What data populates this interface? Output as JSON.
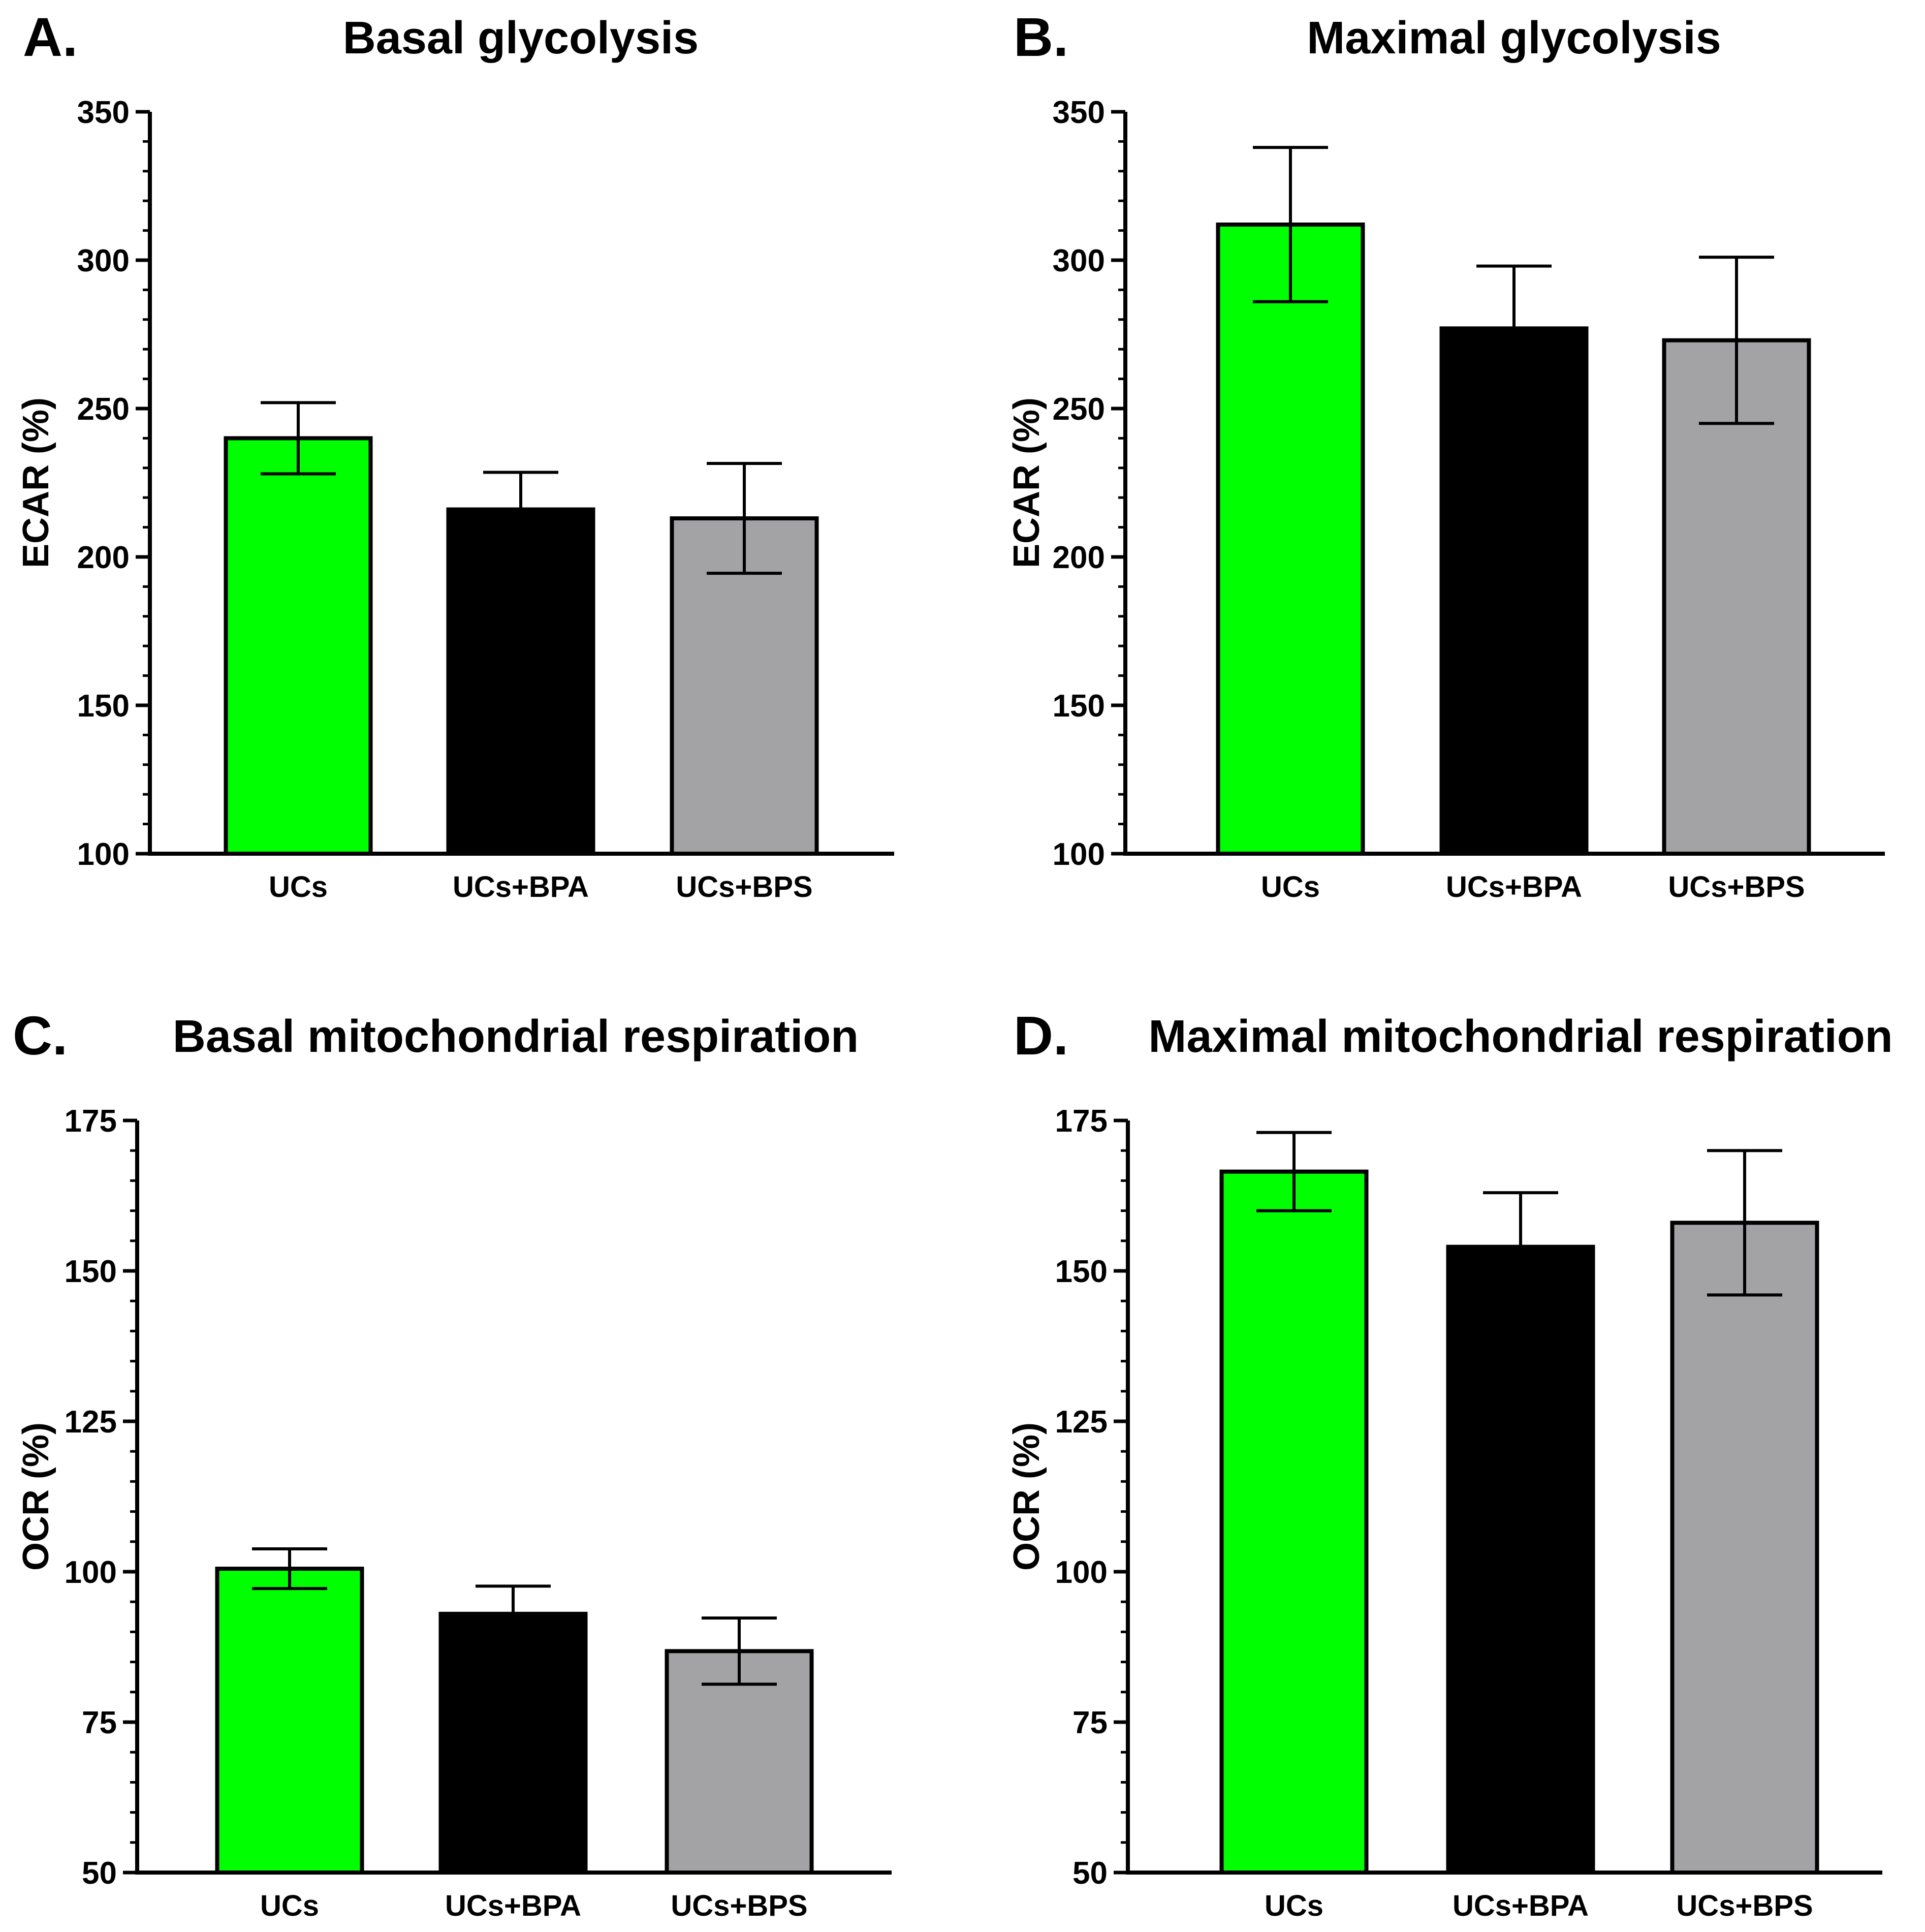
{
  "colors": {
    "green": "#00ff00",
    "black": "#000000",
    "gray": "#a3a3a6",
    "stroke": "#000000"
  },
  "chart_data": [
    {
      "type": "bar",
      "panel": "A.",
      "title": "Basal glycolysis",
      "ylabel": "ECAR (%)",
      "xlabel": "",
      "ylim": [
        100,
        350
      ],
      "yticks": [
        "100",
        "150",
        "200",
        "250",
        "300",
        "350"
      ],
      "categories": [
        "UCs",
        "UCs+BPA",
        "UCs+BPS"
      ],
      "values": [
        240,
        216,
        213
      ],
      "error": [
        12,
        12.5,
        18.5
      ],
      "bar_colors": [
        "#00ff00",
        "#000000",
        "#a3a3a6"
      ]
    },
    {
      "type": "bar",
      "panel": "B.",
      "title": "Maximal glycolysis",
      "ylabel": "ECAR (%)",
      "xlabel": "",
      "ylim": [
        100,
        350
      ],
      "yticks": [
        "100",
        "150",
        "200",
        "250",
        "300",
        "350"
      ],
      "categories": [
        "UCs",
        "UCs+BPA",
        "UCs+BPS"
      ],
      "values": [
        312,
        277,
        273
      ],
      "error": [
        26,
        21,
        28
      ],
      "bar_colors": [
        "#00ff00",
        "#000000",
        "#a3a3a6"
      ]
    },
    {
      "type": "bar",
      "panel": "C.",
      "title": "Basal mitochondrial respiration",
      "ylabel": "OCR (%)",
      "xlabel": "",
      "ylim": [
        50,
        175
      ],
      "yticks": [
        "50",
        "75",
        "100",
        "125",
        "150",
        "175"
      ],
      "categories": [
        "UCs",
        "UCs+BPA",
        "UCs+BPS"
      ],
      "values": [
        100.5,
        93,
        86.8
      ],
      "error": [
        3.3,
        4.6,
        5.5
      ],
      "bar_colors": [
        "#00ff00",
        "#000000",
        "#a3a3a6"
      ]
    },
    {
      "type": "bar",
      "panel": "D.",
      "title": "Maximal mitochondrial respiration",
      "ylabel": "OCR (%)",
      "xlabel": "",
      "ylim": [
        50,
        175
      ],
      "yticks": [
        "50",
        "75",
        "100",
        "125",
        "150",
        "175"
      ],
      "categories": [
        "UCs",
        "UCs+BPA",
        "UCs+BPS"
      ],
      "values": [
        166.5,
        154,
        158
      ],
      "error": [
        6.5,
        9,
        12
      ],
      "bar_colors": [
        "#00ff00",
        "#000000",
        "#a3a3a6"
      ]
    }
  ]
}
